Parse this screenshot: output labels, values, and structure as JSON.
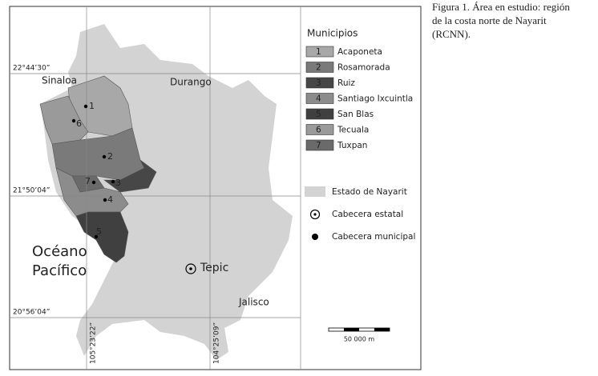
{
  "caption": [
    "Figura 1. Área en estudio: región",
    "de la costa norte de Nayarit",
    "(RCNN)."
  ],
  "map": {
    "latitudes": [
      "22°44’30”",
      "21°50’04”",
      "20°56’04”"
    ],
    "longitudes": [
      "105°23’22”",
      "104°25’09”"
    ],
    "places": {
      "sinaloa": "Sinaloa",
      "durango": "Durango",
      "oceano_1": "Océano",
      "oceano_2": "Pacífico",
      "tepic": "Tepic",
      "jalisco": "Jalisco"
    },
    "points": [
      "1",
      "6",
      "2",
      "7",
      "3",
      "4",
      "5"
    ]
  },
  "legend": {
    "title": "Municipios",
    "municipios": [
      {
        "number": "1",
        "name": "Acaponeta"
      },
      {
        "number": "2",
        "name": "Rosamorada"
      },
      {
        "number": "3",
        "name": "Ruiz"
      },
      {
        "number": "4",
        "name": "Santiago Ixcuintla"
      },
      {
        "number": "5",
        "name": "San Blas"
      },
      {
        "number": "6",
        "name": "Tecuala"
      },
      {
        "number": "7",
        "name": "Tuxpan"
      }
    ],
    "estado": "Estado de Nayarit",
    "cabecera_estatal": "Cabecera estatal",
    "cabecera_municipal": "Cabecera municipal"
  },
  "scale": "50 000 m"
}
